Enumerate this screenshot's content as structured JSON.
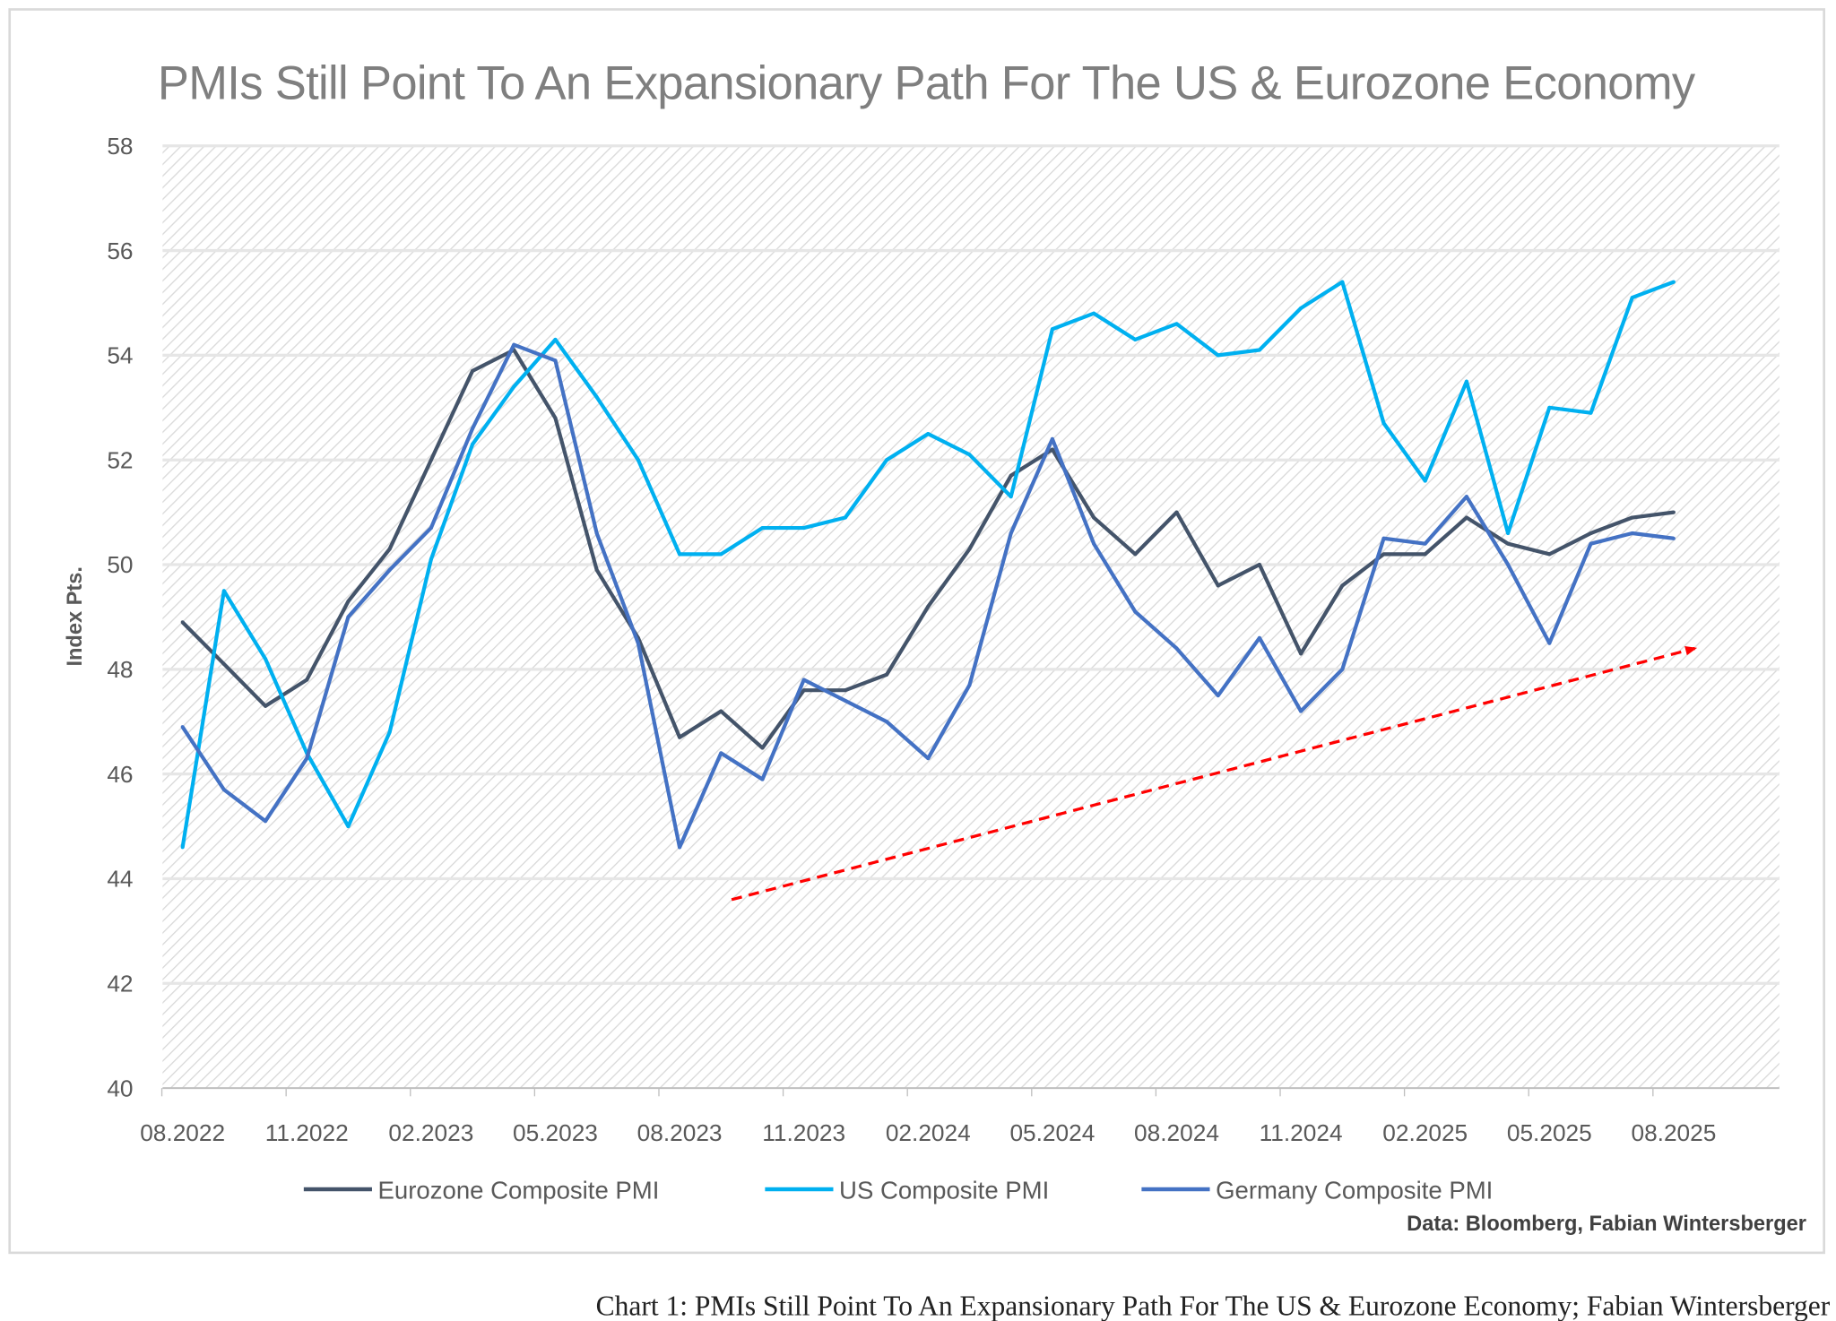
{
  "chart_data": {
    "type": "line",
    "title": "PMIs Still Point To An Expansionary Path For The US & Eurozone Economy",
    "xlabel": "",
    "ylabel": "Index Pts.",
    "ylim": [
      40,
      58
    ],
    "yticks": [
      40,
      42,
      44,
      46,
      48,
      50,
      52,
      54,
      56,
      58
    ],
    "x": [
      "08.2022",
      "09.2022",
      "10.2022",
      "11.2022",
      "12.2022",
      "01.2023",
      "02.2023",
      "03.2023",
      "04.2023",
      "05.2023",
      "06.2023",
      "07.2023",
      "08.2023",
      "09.2023",
      "10.2023",
      "11.2023",
      "12.2023",
      "01.2024",
      "02.2024",
      "03.2024",
      "04.2024",
      "05.2024",
      "06.2024",
      "07.2024",
      "08.2024",
      "09.2024",
      "10.2024",
      "11.2024",
      "12.2024",
      "01.2025",
      "02.2025",
      "03.2025",
      "04.2025",
      "05.2025",
      "06.2025",
      "07.2025",
      "08.2025"
    ],
    "xtick_labels": [
      "08.2022",
      "11.2022",
      "02.2023",
      "05.2023",
      "08.2023",
      "11.2023",
      "02.2024",
      "05.2024",
      "08.2024",
      "11.2024",
      "02.2025",
      "05.2025",
      "08.2025"
    ],
    "grid": true,
    "legend_position": "bottom",
    "series": [
      {
        "name": "Eurozone Composite PMI",
        "color": "#44546a",
        "values": [
          48.9,
          48.1,
          47.3,
          47.8,
          49.3,
          50.3,
          52.0,
          53.7,
          54.1,
          52.8,
          49.9,
          48.6,
          46.7,
          47.2,
          46.5,
          47.6,
          47.6,
          47.9,
          49.2,
          50.3,
          51.7,
          52.2,
          50.9,
          50.2,
          51.0,
          49.6,
          50.0,
          48.3,
          49.6,
          50.2,
          50.2,
          50.9,
          50.4,
          50.2,
          50.6,
          50.9,
          51.0
        ]
      },
      {
        "name": "US Composite PMI",
        "color": "#00b0f0",
        "values": [
          44.6,
          49.5,
          48.2,
          46.4,
          45.0,
          46.8,
          50.1,
          52.3,
          53.4,
          54.3,
          53.2,
          52.0,
          50.2,
          50.2,
          50.7,
          50.7,
          50.9,
          52.0,
          52.5,
          52.1,
          51.3,
          54.5,
          54.8,
          54.3,
          54.6,
          54.0,
          54.1,
          54.9,
          55.4,
          52.7,
          51.6,
          53.5,
          50.6,
          53.0,
          52.9,
          55.1,
          55.4
        ]
      },
      {
        "name": "Germany Composite PMI",
        "color": "#4472c4",
        "values": [
          46.9,
          45.7,
          45.1,
          46.3,
          49.0,
          49.9,
          50.7,
          52.6,
          54.2,
          53.9,
          50.6,
          48.5,
          44.6,
          46.4,
          45.9,
          47.8,
          47.4,
          47.0,
          46.3,
          47.7,
          50.6,
          52.4,
          50.4,
          49.1,
          48.4,
          47.5,
          48.6,
          47.2,
          48.0,
          50.5,
          50.4,
          51.3,
          50.0,
          48.5,
          50.4,
          50.6,
          50.5
        ]
      }
    ],
    "annotations": [
      {
        "type": "trend-arrow",
        "color": "#ff0000",
        "from": {
          "x": "09.2023",
          "y": 43.6
        },
        "to": {
          "x": "08.2025",
          "y": 48.4
        }
      }
    ],
    "source": "Data: Bloomberg, Fabian Wintersberger"
  },
  "caption": "Chart 1: PMIs Still Point To An Expansionary Path For The US & Eurozone Economy; Fabian Wintersberger"
}
